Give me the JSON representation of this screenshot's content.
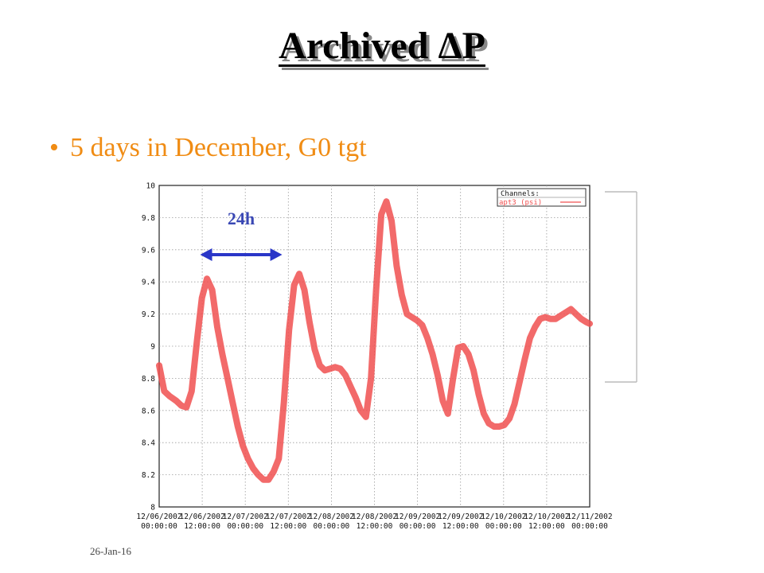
{
  "slide": {
    "title": "Archived ΔP",
    "bullet": "5 days in December, G0 tgt",
    "footer_date": "26-Jan-16"
  },
  "colors": {
    "bullet": "#f08c14",
    "series": "#f05050",
    "annotation": "#2a36c8"
  },
  "chart_data": {
    "type": "line",
    "title": "",
    "xlabel": "",
    "ylabel": "",
    "ylim": [
      8,
      10
    ],
    "xlim": [
      0,
      126
    ],
    "grid": true,
    "legend_position": "top-right",
    "legend_title": "Channels:",
    "yticks": [
      "8",
      "8.2",
      "8.4",
      "8.6",
      "8.8",
      "9",
      "9.2",
      "9.4",
      "9.6",
      "9.8",
      "10"
    ],
    "xticks": [
      {
        "date": "12/06/2002",
        "time": "00:00:00"
      },
      {
        "date": "12/06/2002",
        "time": "12:00:00"
      },
      {
        "date": "12/07/2002",
        "time": "00:00:00"
      },
      {
        "date": "12/07/2002",
        "time": "12:00:00"
      },
      {
        "date": "12/08/2002",
        "time": "00:00:00"
      },
      {
        "date": "12/08/2002",
        "time": "12:00:00"
      },
      {
        "date": "12/09/2002",
        "time": "00:00:00"
      },
      {
        "date": "12/09/2002",
        "time": "12:00:00"
      },
      {
        "date": "12/10/2002",
        "time": "00:00:00"
      },
      {
        "date": "12/10/2002",
        "time": "12:00:00"
      },
      {
        "date": "12/11/2002",
        "time": "00:00:00"
      }
    ],
    "series": [
      {
        "name": "apt3 (psi)",
        "x": [
          0,
          1.5,
          3,
          5,
          6.5,
          8,
          9.5,
          11,
          12.5,
          14,
          15.5,
          17,
          18.5,
          20,
          21.5,
          23,
          24.5,
          26,
          27.5,
          29,
          30.5,
          32,
          33.5,
          35,
          36.5,
          38,
          39.5,
          41,
          42.5,
          44,
          45.5,
          47,
          48.5,
          50,
          51.5,
          53,
          54.5,
          56,
          57.5,
          59,
          60.5,
          62,
          63.5,
          65,
          66.5,
          68,
          69.5,
          71,
          72.5,
          74,
          75.5,
          77,
          78.5,
          80,
          81.5,
          83,
          84.5,
          86,
          87.5,
          89,
          90.5,
          92,
          93.5,
          95,
          96.5,
          98,
          99.5,
          101,
          102.5,
          104,
          105.5,
          107,
          108.5,
          110,
          111.5,
          113,
          114.5,
          116,
          117.5,
          119,
          120.5,
          122,
          123.5,
          125,
          126
        ],
        "values": [
          8.88,
          8.72,
          8.69,
          8.66,
          8.63,
          8.62,
          8.72,
          9.02,
          9.3,
          9.42,
          9.35,
          9.12,
          8.95,
          8.8,
          8.65,
          8.5,
          8.38,
          8.3,
          8.24,
          8.2,
          8.17,
          8.17,
          8.22,
          8.3,
          8.65,
          9.1,
          9.38,
          9.45,
          9.35,
          9.15,
          8.98,
          8.88,
          8.85,
          8.86,
          8.87,
          8.86,
          8.82,
          8.75,
          8.68,
          8.6,
          8.56,
          8.8,
          9.35,
          9.82,
          9.9,
          9.78,
          9.5,
          9.32,
          9.2,
          9.18,
          9.16,
          9.13,
          9.05,
          8.95,
          8.82,
          8.66,
          8.58,
          8.8,
          8.99,
          9.0,
          8.95,
          8.85,
          8.7,
          8.58,
          8.52,
          8.5,
          8.5,
          8.51,
          8.55,
          8.64,
          8.78,
          8.92,
          9.05,
          9.12,
          9.17,
          9.18,
          9.17,
          9.17,
          9.19,
          9.21,
          9.23,
          9.2,
          9.17,
          9.15,
          9.14
        ]
      }
    ],
    "annotations": [
      {
        "text": "24h",
        "kind": "double-arrow",
        "x_start": 12,
        "x_end": 36
      }
    ]
  }
}
